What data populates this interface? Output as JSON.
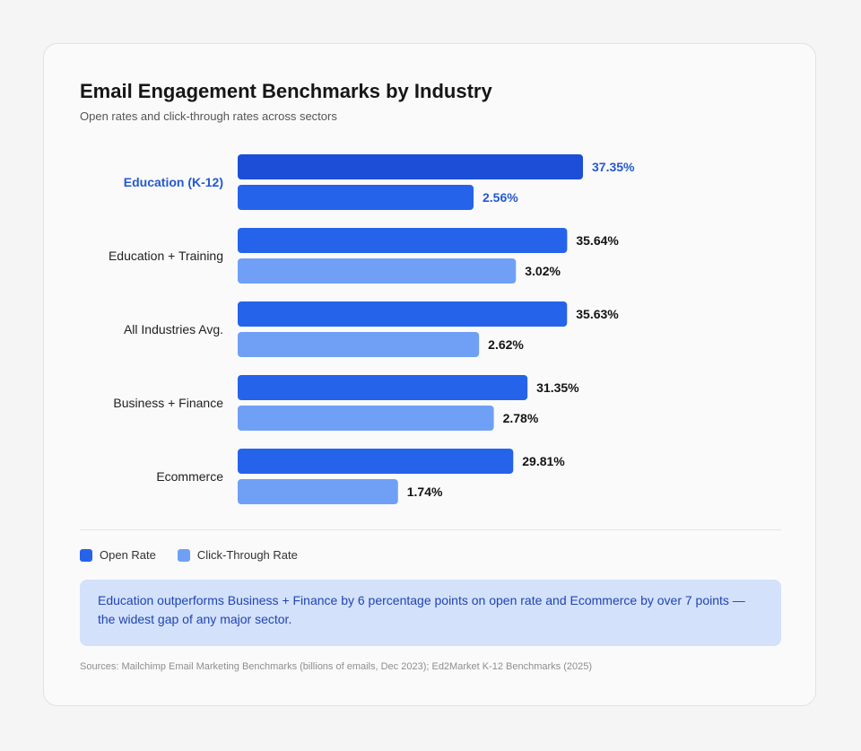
{
  "header": {
    "title": "Email Engagement Benchmarks by Industry",
    "subtitle": "Open rates and click-through rates across sectors"
  },
  "colors": {
    "open_rate": "#2563eb",
    "open_rate_highlight": "#1d4ed8",
    "click_rate": "#70a0f5",
    "highlight_text": "#2459cf"
  },
  "chart_data": {
    "type": "bar",
    "orientation": "horizontal",
    "title": "Email Engagement Benchmarks by Industry",
    "subtitle": "Open rates and click-through rates across sectors",
    "categories": [
      "Education (K-12)",
      "Education + Training",
      "All Industries Avg.",
      "Business + Finance",
      "Ecommerce"
    ],
    "highlight_category": "Education (K-12)",
    "series": [
      {
        "name": "Open Rate",
        "values": [
          37.35,
          35.64,
          35.63,
          31.35,
          29.81
        ],
        "labels": [
          "37.35%",
          "35.64%",
          "35.63%",
          "31.35%",
          "29.81%"
        ]
      },
      {
        "name": "Click-Through Rate",
        "values": [
          2.56,
          3.02,
          2.62,
          2.78,
          1.74
        ],
        "labels": [
          "2.56%",
          "3.02%",
          "2.62%",
          "2.78%",
          "1.74%"
        ]
      }
    ],
    "legend_position": "bottom-left",
    "grid": false
  },
  "legend": {
    "open_label": "Open Rate",
    "click_label": "Click-Through Rate"
  },
  "callout": {
    "text": "Education outperforms Business + Finance by 6 percentage points on open rate and Ecommerce by over 7 points — the widest gap of any major sector."
  },
  "footer": {
    "source": "Sources: Mailchimp Email Marketing Benchmarks (billions of emails, Dec 2023); Ed2Market K-12 Benchmarks (2025)"
  }
}
